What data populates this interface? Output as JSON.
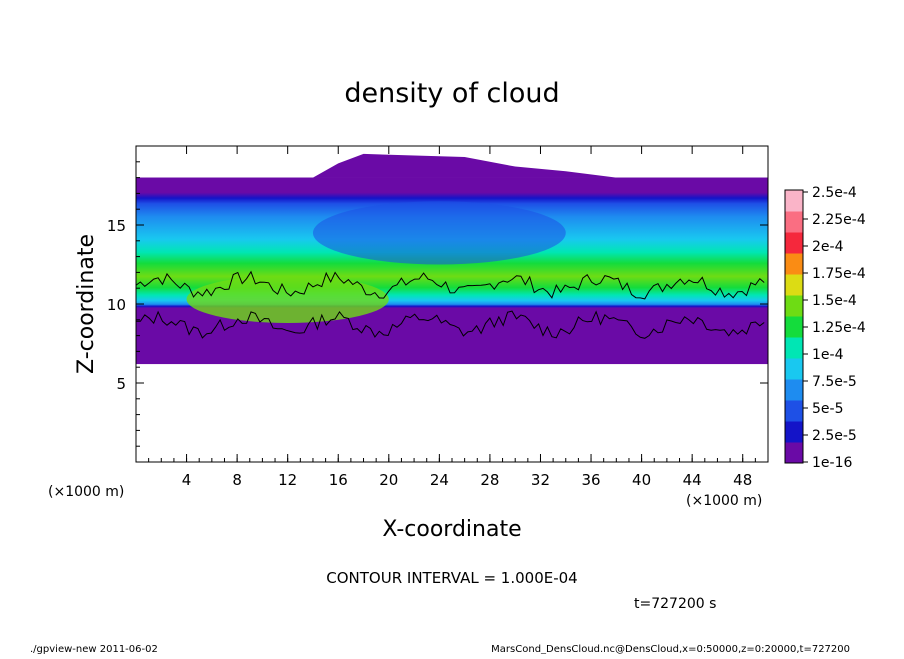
{
  "chart_data": {
    "type": "heatmap",
    "title": "density of cloud",
    "xlabel": "X-coordinate",
    "ylabel": "Z-coordinate",
    "x_unit": "(×1000 m)",
    "z_unit": "(×1000 m)",
    "xlim": [
      0,
      50
    ],
    "ylim": [
      0,
      20
    ],
    "x_ticks": [
      4,
      8,
      12,
      16,
      20,
      24,
      28,
      32,
      36,
      40,
      44,
      48
    ],
    "y_ticks": [
      5,
      10,
      15
    ],
    "colorbar": {
      "labels": [
        "1e-16",
        "2.5e-5",
        "5e-5",
        "7.5e-5",
        "1e-4",
        "1.25e-4",
        "1.5e-4",
        "1.75e-4",
        "2e-4",
        "2.25e-4",
        "2.5e-4"
      ],
      "colors": [
        "#6a0aa6",
        "#1414c8",
        "#1e50e6",
        "#1e8cf0",
        "#19c8f0",
        "#00e6b4",
        "#14dc3c",
        "#6edc14",
        "#dcdc14",
        "#fa8c14",
        "#f5283c",
        "#fa6e82",
        "#fab4c8"
      ]
    },
    "contour_interval": "CONTOUR INTERVAL = 1.000E-04",
    "contour_level": 0.0001,
    "time_label": "t=727200 s",
    "cloud_layer": {
      "bottom_km": 6.2,
      "top_km": 18.0,
      "dome_top_km": 19.5,
      "dome_x_range_km": [
        16,
        30
      ],
      "peak_band_km": [
        8.5,
        11.5
      ],
      "peak_density": 0.00017
    }
  },
  "footer": {
    "left": "./gpview-new   2011-06-02",
    "right": "MarsCond_DensCloud.nc@DensCloud,x=0:50000,z=0:20000,t=727200"
  }
}
